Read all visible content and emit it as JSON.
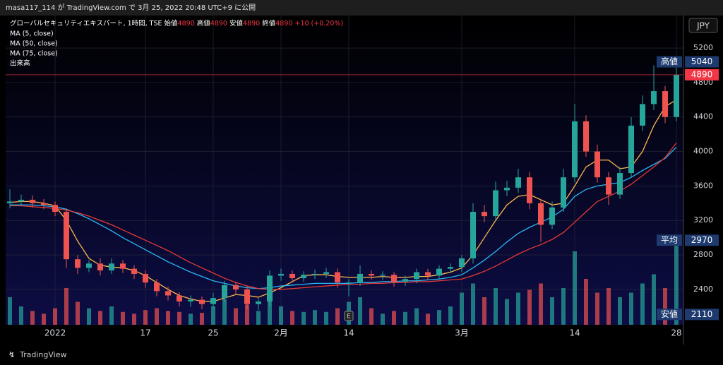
{
  "header": "masa117_114 が TradingView.com で 3月 25, 2022 20:48 UTC+9 に公開",
  "footer": "TradingView",
  "chart_data": {
    "type": "candlestick",
    "title": "グローバルセキュリティエキスパート, 1時間, TSE",
    "ohlc_legend": [
      {
        "label": "始値",
        "value": 4890
      },
      {
        "label": "高値",
        "value": 4890
      },
      {
        "label": "安値",
        "value": 4890
      },
      {
        "label": "終値",
        "value": 4890
      }
    ],
    "change": "+10 (+0.20%)",
    "categories": [
      null,
      null,
      null,
      null,
      "2022",
      null,
      null,
      null,
      null,
      null,
      null,
      null,
      "17",
      null,
      null,
      null,
      null,
      null,
      "25",
      null,
      null,
      null,
      null,
      null,
      "2月",
      null,
      null,
      null,
      null,
      null,
      "14",
      null,
      null,
      null,
      null,
      null,
      null,
      null,
      null,
      null,
      "3月",
      null,
      null,
      null,
      null,
      null,
      null,
      null,
      null,
      null,
      "14",
      null,
      null,
      null,
      null,
      null,
      null,
      null,
      null,
      "28"
    ],
    "open": [
      3400,
      3420,
      3440,
      3400,
      3380,
      3300,
      2750,
      2650,
      2700,
      2620,
      2700,
      2640,
      2580,
      2480,
      2380,
      2330,
      2260,
      2280,
      2230,
      2300,
      2450,
      2400,
      2230,
      2260,
      2560,
      2580,
      2530,
      2570,
      2580,
      2600,
      2480,
      2480,
      2580,
      2560,
      2570,
      2490,
      2520,
      2600,
      2560,
      2640,
      2660,
      2760,
      3300,
      3250,
      3550,
      3580,
      3700,
      3400,
      3150,
      3350,
      3700,
      4350,
      4000,
      3700,
      3500,
      3750,
      4300,
      4550,
      4700,
      4400
    ],
    "high": [
      3560,
      3500,
      3490,
      3450,
      3420,
      3340,
      2800,
      2740,
      2760,
      2760,
      2740,
      2680,
      2620,
      2520,
      2430,
      2370,
      2330,
      2320,
      2360,
      2500,
      2490,
      2440,
      2300,
      2620,
      2640,
      2620,
      2610,
      2630,
      2650,
      2640,
      2520,
      2680,
      2620,
      2610,
      2600,
      2560,
      2640,
      2640,
      2680,
      2700,
      2800,
      3400,
      3380,
      3650,
      3660,
      3800,
      3760,
      3450,
      3420,
      3800,
      4550,
      4420,
      4080,
      3760,
      3820,
      4400,
      4650,
      5000,
      4760,
      5040
    ],
    "low": [
      3340,
      3370,
      3350,
      3330,
      3250,
      2650,
      2580,
      2600,
      2560,
      2580,
      2590,
      2520,
      2420,
      2320,
      2270,
      2200,
      2200,
      2170,
      2180,
      2250,
      2340,
      2170,
      2160,
      2200,
      2500,
      2480,
      2490,
      2520,
      2530,
      2420,
      2320,
      2440,
      2510,
      2510,
      2430,
      2440,
      2470,
      2510,
      2510,
      2590,
      2600,
      2700,
      3180,
      3200,
      3480,
      3520,
      3330,
      2950,
      3100,
      3300,
      3640,
      3940,
      3640,
      3380,
      3450,
      3700,
      4240,
      4480,
      4330,
      4350
    ],
    "close": [
      3420,
      3440,
      3400,
      3380,
      3300,
      2750,
      2650,
      2700,
      2620,
      2700,
      2640,
      2580,
      2480,
      2380,
      2330,
      2260,
      2280,
      2230,
      2300,
      2450,
      2400,
      2230,
      2260,
      2560,
      2580,
      2530,
      2570,
      2580,
      2600,
      2480,
      2480,
      2580,
      2560,
      2570,
      2490,
      2520,
      2600,
      2560,
      2640,
      2660,
      2760,
      3300,
      3250,
      3550,
      3580,
      3700,
      3400,
      3150,
      3350,
      3700,
      4350,
      4000,
      3700,
      3500,
      3750,
      4300,
      4550,
      4700,
      4400,
      4890
    ],
    "up_color": "#26a69a",
    "down_color": "#ef5350",
    "series": [
      {
        "name": "MA (5, close)",
        "color": "#ffb74d",
        "values": [
          3410,
          3420,
          3420,
          3400,
          3370,
          3200,
          2960,
          2760,
          2680,
          2660,
          2650,
          2620,
          2560,
          2480,
          2400,
          2330,
          2290,
          2260,
          2260,
          2300,
          2340,
          2330,
          2310,
          2360,
          2420,
          2490,
          2560,
          2570,
          2570,
          2550,
          2540,
          2540,
          2540,
          2550,
          2540,
          2540,
          2550,
          2550,
          2570,
          2600,
          2650,
          2800,
          3000,
          3200,
          3380,
          3480,
          3500,
          3440,
          3380,
          3400,
          3600,
          3820,
          3900,
          3900,
          3800,
          3820,
          4000,
          4300,
          4520,
          4600
        ]
      },
      {
        "name": "MA (50, close)",
        "color": "#29b6f6",
        "values": [
          3380,
          3380,
          3380,
          3370,
          3360,
          3330,
          3280,
          3220,
          3150,
          3080,
          3000,
          2930,
          2860,
          2790,
          2720,
          2660,
          2600,
          2550,
          2500,
          2470,
          2440,
          2420,
          2410,
          2420,
          2440,
          2450,
          2460,
          2470,
          2470,
          2470,
          2470,
          2480,
          2480,
          2490,
          2490,
          2500,
          2500,
          2510,
          2520,
          2540,
          2570,
          2650,
          2740,
          2840,
          2950,
          3050,
          3120,
          3180,
          3240,
          3330,
          3480,
          3560,
          3600,
          3620,
          3640,
          3700,
          3780,
          3850,
          3920,
          4050
        ]
      },
      {
        "name": "MA (75, close)",
        "color": "#e53935",
        "values": [
          3370,
          3370,
          3360,
          3350,
          3340,
          3320,
          3290,
          3250,
          3200,
          3150,
          3090,
          3030,
          2970,
          2910,
          2850,
          2780,
          2710,
          2650,
          2590,
          2530,
          2480,
          2440,
          2410,
          2400,
          2400,
          2410,
          2420,
          2430,
          2440,
          2450,
          2460,
          2460,
          2470,
          2470,
          2480,
          2480,
          2490,
          2490,
          2500,
          2510,
          2520,
          2560,
          2610,
          2670,
          2740,
          2810,
          2870,
          2920,
          2980,
          3060,
          3180,
          3300,
          3420,
          3480,
          3540,
          3620,
          3720,
          3820,
          3930,
          4100
        ]
      }
    ],
    "volume": {
      "name": "出来高",
      "ylim": [
        0,
        100
      ],
      "values": [
        30,
        20,
        15,
        12,
        18,
        40,
        25,
        18,
        15,
        20,
        14,
        12,
        16,
        18,
        15,
        14,
        12,
        13,
        20,
        28,
        18,
        22,
        15,
        35,
        20,
        15,
        14,
        16,
        14,
        18,
        25,
        30,
        18,
        12,
        15,
        14,
        18,
        12,
        16,
        20,
        35,
        45,
        30,
        40,
        28,
        35,
        38,
        45,
        30,
        40,
        80,
        50,
        35,
        40,
        30,
        35,
        45,
        55,
        40,
        92
      ]
    },
    "ylim": [
      1990,
      5577
    ],
    "yticks": [
      2400,
      2800,
      3200,
      3600,
      4000,
      4400,
      4800,
      5200
    ],
    "grid": true,
    "currency": "JPY",
    "last_price": 4890,
    "last_price_color": "#f23645",
    "price_labels": [
      {
        "label": "高値",
        "value": 5040
      },
      {
        "label": "平均",
        "value": 2970
      },
      {
        "label": "安値",
        "value": 2110
      }
    ],
    "event": {
      "label": "E",
      "category_index": 30
    }
  }
}
